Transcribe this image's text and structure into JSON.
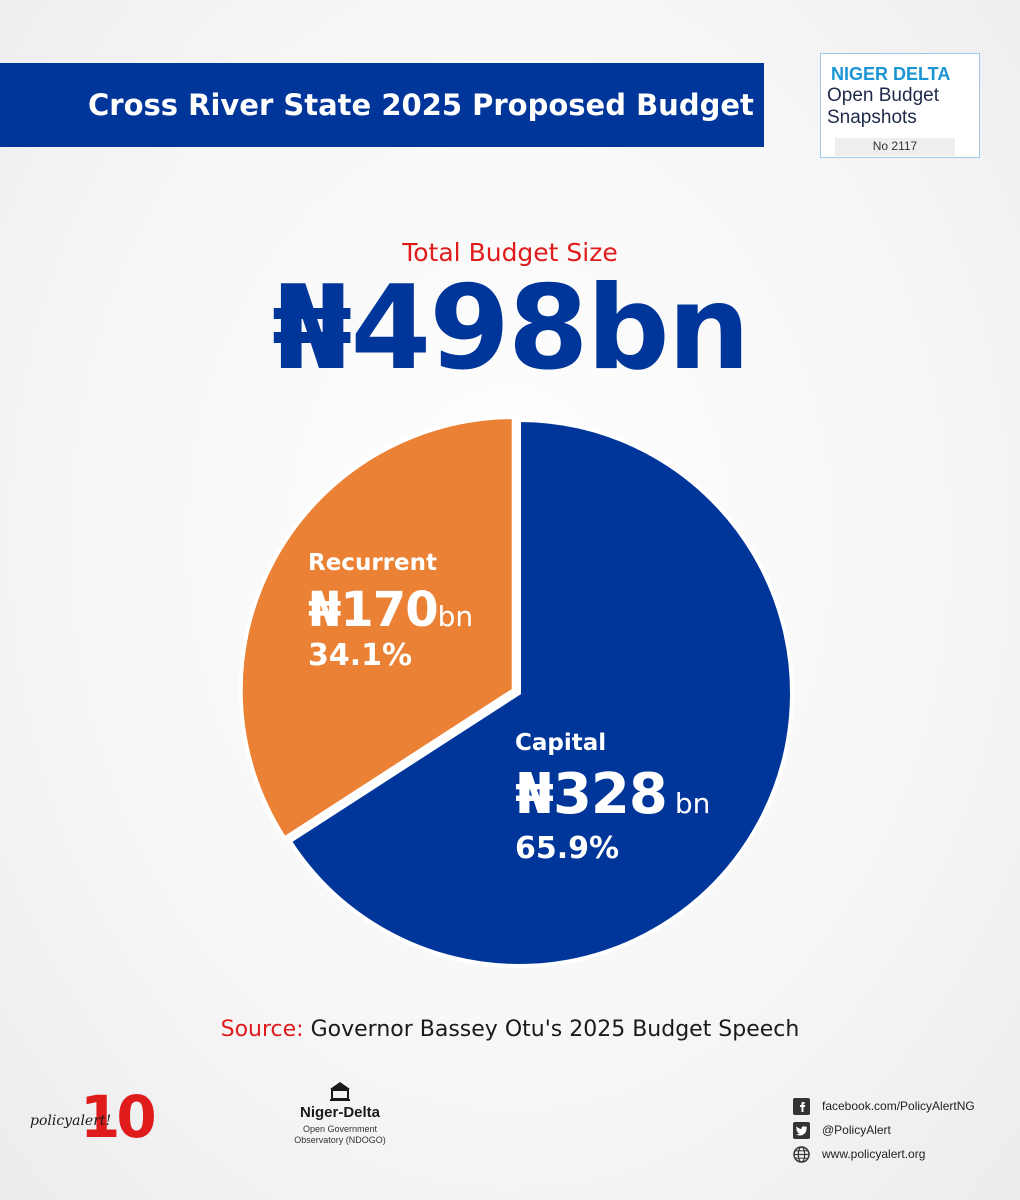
{
  "header": {
    "title": "Cross River State 2025 Proposed Budget"
  },
  "badge": {
    "line1": "NIGER DELTA",
    "line2": "Open Budget",
    "line3": "Snapshots",
    "number": "No 2117"
  },
  "total": {
    "label": "Total Budget Size",
    "value": "₦498bn"
  },
  "chart_data": {
    "type": "pie",
    "title": "Total Budget Size",
    "total": "₦498bn",
    "slices": [
      {
        "label": "Capital",
        "value": 328,
        "unit": "bn",
        "amount": "₦328",
        "percent": 65.9,
        "percent_label": "65.9%",
        "color": "#00369a"
      },
      {
        "label": "Recurrent",
        "value": 170,
        "unit": "bn",
        "amount": "₦170",
        "percent": 34.1,
        "percent_label": "34.1%",
        "color": "#ea8135"
      }
    ]
  },
  "source": {
    "label": "Source:",
    "text": "Governor Bassey Otu's 2025 Budget Speech"
  },
  "footer": {
    "policy_alert": {
      "name": "policyalert!",
      "anniversary": "10"
    },
    "ngo": {
      "name": "Niger-Delta",
      "sub1": "Open Government",
      "sub2": "Observatory (NDOGO)"
    },
    "social": [
      {
        "icon": "facebook-icon",
        "text": "facebook.com/PolicyAlertNG"
      },
      {
        "icon": "twitter-icon",
        "text": "@PolicyAlert"
      },
      {
        "icon": "globe-icon",
        "text": "www.policyalert.org"
      }
    ]
  },
  "colors": {
    "brand_blue": "#00369a",
    "accent_orange": "#ea8135",
    "accent_red": "#e01b1b",
    "badge_cyan": "#1a95d4"
  }
}
